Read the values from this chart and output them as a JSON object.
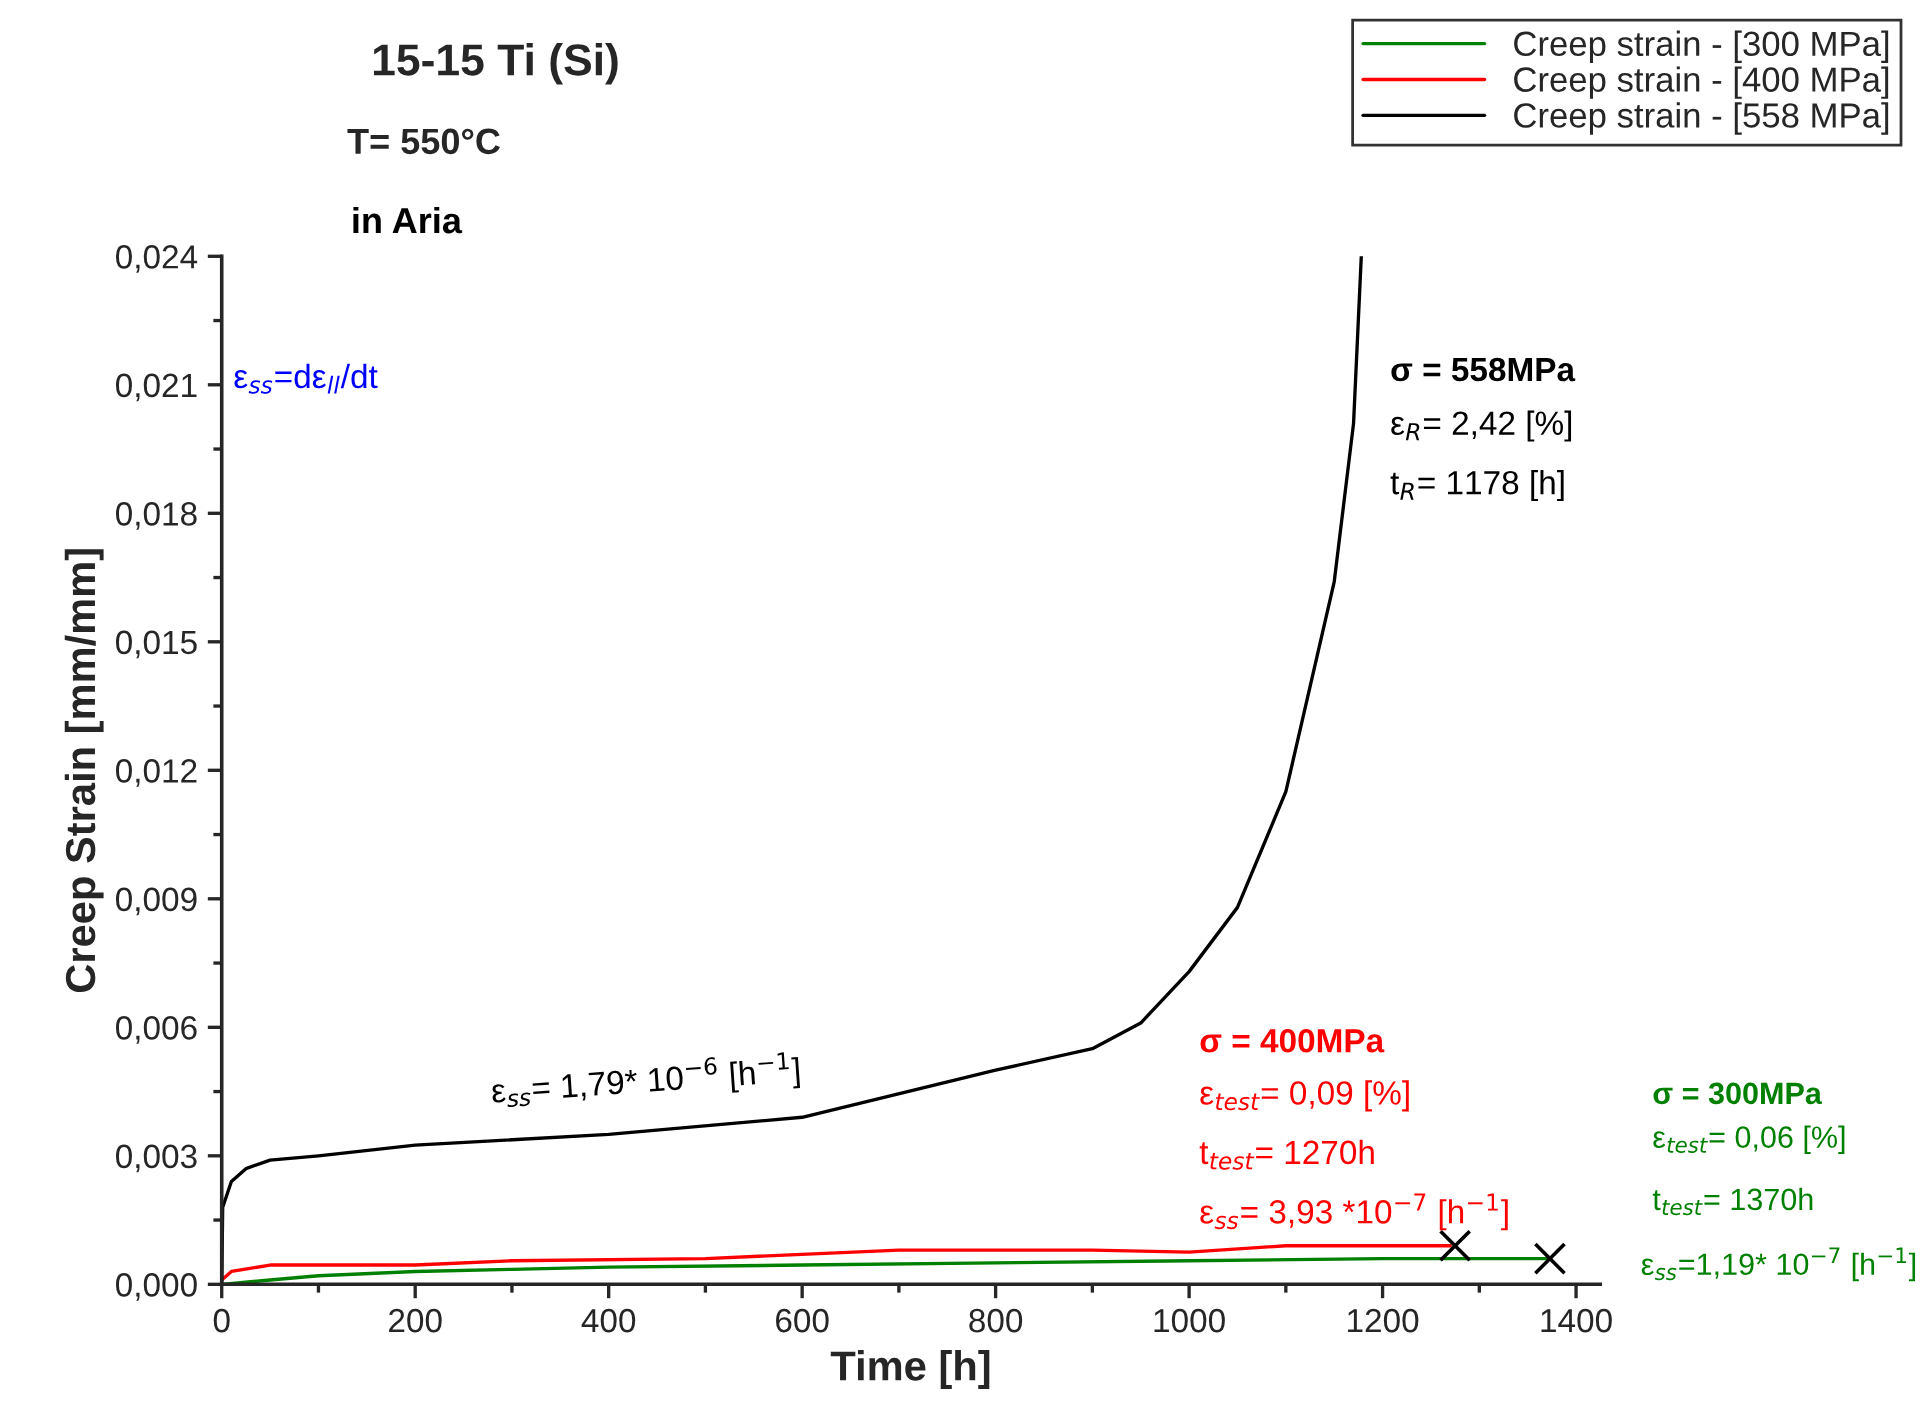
{
  "chart_data": {
    "type": "line",
    "title": "15-15 Ti (Si)",
    "subtitle": "T= 550°C",
    "xlabel": "Time [h]",
    "ylabel": "Creep Strain [mm/mm]",
    "xlim": [
      0,
      1425
    ],
    "xticks": [
      0,
      200,
      400,
      600,
      800,
      1000,
      1200,
      1400
    ],
    "ylim": [
      0,
      0.024
    ],
    "yticks": [
      {
        "value": 0,
        "label": "0,000"
      },
      {
        "value": 0.003,
        "label": "0,003"
      },
      {
        "value": 0.006,
        "label": "0,006"
      },
      {
        "value": 0.009,
        "label": "0,009"
      },
      {
        "value": 0.012,
        "label": "0,012"
      },
      {
        "value": 0.015,
        "label": "0,015"
      },
      {
        "value": 0.018,
        "label": "0,018"
      },
      {
        "value": 0.021,
        "label": "0,021"
      },
      {
        "value": 0.024,
        "label": "0,024"
      }
    ],
    "legend": "top right",
    "grid": false,
    "marker": "none",
    "line_style": "solid",
    "series": [
      {
        "name": "Creep strain - [300 MPa]",
        "color": "#008000",
        "x": [
          0,
          50,
          100,
          200,
          300,
          400,
          600,
          800,
          1000,
          1200,
          1370
        ],
        "values": [
          0,
          0.0001,
          0.0002,
          0.0003,
          0.00035,
          0.0004,
          0.00045,
          0.0005,
          0.00055,
          0.0006,
          0.0006
        ]
      },
      {
        "name": "Creep strain - [400 MPa]",
        "color": "#ff0000",
        "x": [
          0,
          10,
          50,
          200,
          300,
          500,
          700,
          900,
          1000,
          1100,
          1270
        ],
        "values": [
          0.0001,
          0.0003,
          0.00045,
          0.00045,
          0.00055,
          0.0006,
          0.0008,
          0.0008,
          0.00075,
          0.0009,
          0.0009
        ]
      },
      {
        "name": "Creep strain - [558 MPa]",
        "color": "#000000",
        "x": [
          0,
          1,
          10,
          25,
          50,
          100,
          200,
          400,
          600,
          800,
          900,
          950,
          1000,
          1050,
          1100,
          1150,
          1170,
          1178
        ],
        "values": [
          0,
          0.0018,
          0.0024,
          0.0027,
          0.0029,
          0.003,
          0.00325,
          0.0035,
          0.0039,
          0.005,
          0.0055,
          0.0061,
          0.0073,
          0.0088,
          0.0115,
          0.0164,
          0.0201,
          0.024
        ]
      },
      {
        "type": "scatter",
        "marker": "cross",
        "color": "#000000",
        "x": [
          1275,
          1373
        ],
        "values": [
          0.0009,
          0.0006
        ]
      }
    ],
    "annotations": [
      "in Aria",
      "ε$_{ss}$=dε$_{ll}$/dt",
      "ε$_{ss}$= 1,79* 10$^{−6}$ [h$^{−1}$]",
      "σ = 558MPa",
      "ε$_{R}$= 2,42 [%]",
      "t$_{R}$= 1178 [h]",
      "σ = 400MPa",
      "ε$_{test}$= 0,09 [%]",
      "t$_{test}$= 1270h",
      "ε$_{ss}$= 3,93 *10$^{−7}$ [h$^{−1}$]",
      "σ = 300MPa",
      "ε$_{test}$= 0,06 [%]",
      "t$_{test}$= 1370h",
      "ε$_{ss}$=1,19* 10$^{−7}$ [h$^{−1}$]"
    ]
  }
}
